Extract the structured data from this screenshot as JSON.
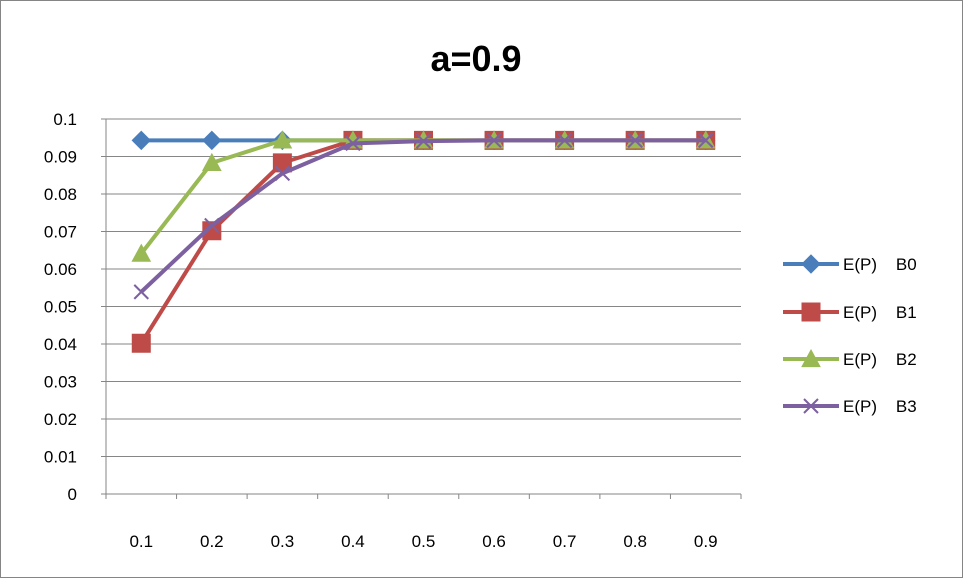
{
  "chart_data": {
    "type": "line",
    "title": "a=0.9",
    "xlabel": "",
    "ylabel": "",
    "categories": [
      "0.1",
      "0.2",
      "0.3",
      "0.4",
      "0.5",
      "0.6",
      "0.7",
      "0.8",
      "0.9"
    ],
    "ylim": [
      0,
      0.1
    ],
    "yticks": [
      "0",
      "0.01",
      "0.02",
      "0.03",
      "0.04",
      "0.05",
      "0.06",
      "0.07",
      "0.08",
      "0.09",
      "0.1"
    ],
    "grid": "horizontal",
    "legend_position": "right",
    "series": [
      {
        "name": "E(P)    B0",
        "color": "#4A7EBB",
        "marker": "diamond",
        "values": [
          0.0943,
          0.0943,
          0.0943,
          0.0943,
          0.0943,
          0.0943,
          0.0943,
          0.0943,
          0.0943
        ]
      },
      {
        "name": "E(P)    B1",
        "color": "#BE4B48",
        "marker": "square",
        "values": [
          0.0402,
          0.0702,
          0.0883,
          0.0943,
          0.0943,
          0.0943,
          0.0943,
          0.0943,
          0.0943
        ]
      },
      {
        "name": "E(P)    B2",
        "color": "#98B954",
        "marker": "triangle",
        "values": [
          0.0641,
          0.0883,
          0.0943,
          0.0943,
          0.0943,
          0.0943,
          0.0943,
          0.0943,
          0.0943
        ]
      },
      {
        "name": "E(P)    B3",
        "color": "#7D60A0",
        "marker": "x",
        "values": [
          0.0539,
          0.0716,
          0.0855,
          0.0935,
          0.0941,
          0.0943,
          0.0943,
          0.0943,
          0.0943
        ]
      }
    ]
  }
}
